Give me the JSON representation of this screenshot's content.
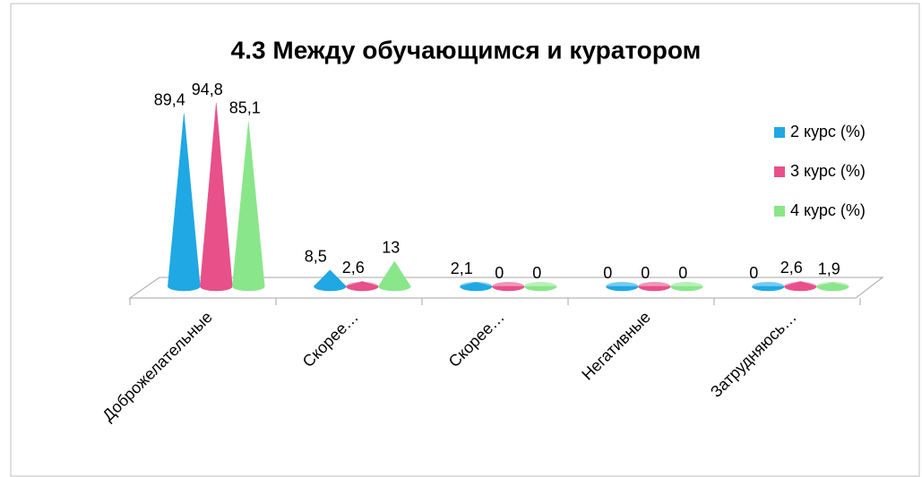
{
  "chart_data": {
    "type": "cone",
    "title": "4.3 Между обучающимся и куратором",
    "categories": [
      "Доброжелательные",
      "Скорее…",
      "Скорее…",
      "Негативные",
      "Затрудняюсь…"
    ],
    "series": [
      {
        "name": "2 курс (%)",
        "color": "#1fa8e4",
        "values": [
          89.4,
          8.5,
          2.1,
          0,
          0
        ],
        "value_labels": [
          "89,4",
          "8,5",
          "2,1",
          "0",
          "0"
        ]
      },
      {
        "name": "3 курс (%)",
        "color": "#e8508a",
        "values": [
          94.8,
          2.6,
          0,
          0,
          2.6
        ],
        "value_labels": [
          "94,8",
          "2,6",
          "0",
          "0",
          "2,6"
        ]
      },
      {
        "name": "4 курс (%)",
        "color": "#8ae68a",
        "values": [
          85.1,
          13,
          0,
          0,
          1.9
        ],
        "value_labels": [
          "85,1",
          "13",
          "0",
          "0",
          "1,9"
        ]
      }
    ],
    "legend": "right"
  }
}
